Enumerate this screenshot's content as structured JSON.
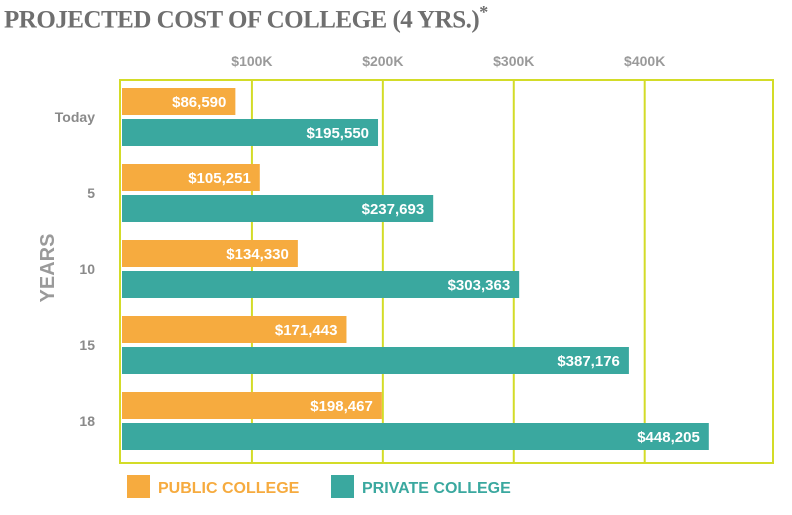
{
  "chart_data": {
    "type": "bar",
    "orientation": "horizontal",
    "title": "PROJECTED COST OF COLLEGE (4 YRS.)",
    "title_mark": "*",
    "ylabel": "YEARS",
    "categories": [
      "Today",
      "5",
      "10",
      "15",
      "18"
    ],
    "xticks": [
      100000,
      200000,
      300000,
      400000
    ],
    "xtick_labels": [
      "$100K",
      "$200K",
      "$300K",
      "$400K"
    ],
    "xlim": [
      0,
      498000
    ],
    "grid": true,
    "legend_position": "bottom",
    "series": [
      {
        "name": "PUBLIC COLLEGE",
        "color": "#f6ab3f",
        "values": [
          86590,
          105251,
          134330,
          171443,
          198467
        ],
        "labels": [
          "$86,590",
          "$105,251",
          "$134,330",
          "$171,443",
          "$198,467"
        ]
      },
      {
        "name": "PRIVATE COLLEGE",
        "color": "#3aa89f",
        "values": [
          195550,
          237693,
          303363,
          387176,
          448205
        ],
        "labels": [
          "$195,550",
          "$237,693",
          "$303,363",
          "$387,176",
          "$448,205"
        ]
      }
    ],
    "frame_color": "#d3dc28"
  }
}
